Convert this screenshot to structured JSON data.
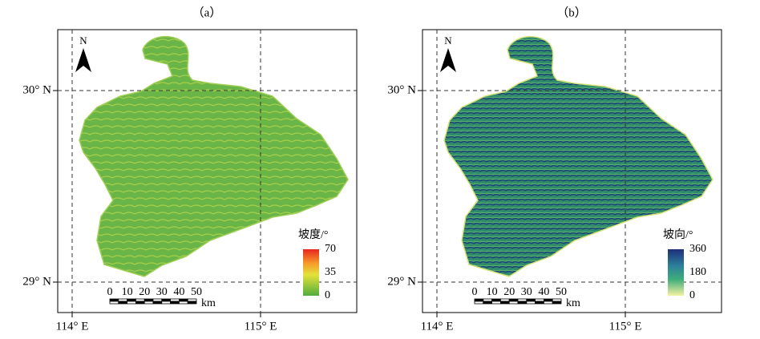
{
  "panels": [
    {
      "label": "（a）",
      "north": "N",
      "lat_labels": [
        "30° N",
        "29° N"
      ],
      "lon_labels": [
        "114° E",
        "115° E"
      ],
      "scale_bar": {
        "ticks": [
          "0",
          "10",
          "20",
          "30",
          "40",
          "50"
        ],
        "unit": "km"
      },
      "legend": {
        "title": "坡度/°",
        "ticks": [
          "70",
          "35",
          "0"
        ]
      }
    },
    {
      "label": "（b）",
      "north": "N",
      "lat_labels": [
        "30° N",
        "29° N"
      ],
      "lon_labels": [
        "114° E",
        "115° E"
      ],
      "scale_bar": {
        "ticks": [
          "0",
          "10",
          "20",
          "30",
          "40",
          "50"
        ],
        "unit": "km"
      },
      "legend": {
        "title": "坡向/°",
        "ticks": [
          "360",
          "180",
          "0"
        ]
      }
    }
  ]
}
